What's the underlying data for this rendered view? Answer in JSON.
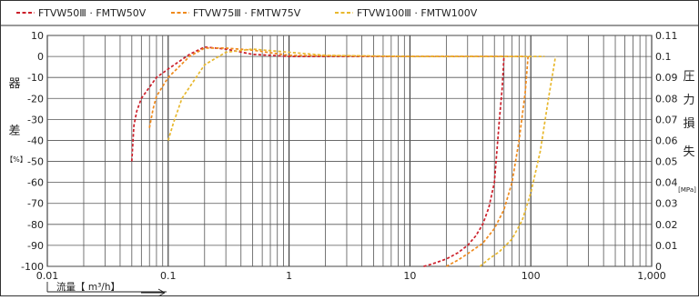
{
  "chart_data": {
    "type": "line",
    "x_scale": "log",
    "xlim": [
      0.01,
      1000
    ],
    "x_ticks": [
      "0.01",
      "0.1",
      "1",
      "10",
      "100",
      "1,000"
    ],
    "x_tick_values": [
      0.01,
      0.1,
      1,
      10,
      100,
      1000
    ],
    "xlabel": "流量【 m³/h】",
    "ylim_left": [
      -100,
      10
    ],
    "y_ticks_left": [
      "10",
      "0",
      "-10",
      "-20",
      "-30",
      "-40",
      "-50",
      "-60",
      "-70",
      "-80",
      "-90",
      "-100"
    ],
    "ylabel_left": [
      "器",
      "差",
      "【%】"
    ],
    "ylim_right": [
      0,
      0.11
    ],
    "y_ticks_right": [
      "0.11",
      "0.1",
      "0.09",
      "0.08",
      "0.07",
      "0.06",
      "0.05",
      "0.04",
      "0.03",
      "0.02",
      "0.01",
      "0"
    ],
    "ylabel_right": [
      "圧",
      "力",
      "損",
      "失",
      "[MPa]"
    ],
    "grid": true,
    "legend_position": "top-left",
    "series": [
      {
        "name": "FTVW50Ⅲ · FMTW50V",
        "color": "#cc1f2a",
        "error_curve": [
          [
            0.05,
            -50
          ],
          [
            0.052,
            -33
          ],
          [
            0.055,
            -26
          ],
          [
            0.06,
            -20
          ],
          [
            0.08,
            -10
          ],
          [
            0.1,
            -6
          ],
          [
            0.15,
            1
          ],
          [
            0.2,
            4.5
          ],
          [
            0.3,
            3.5
          ],
          [
            0.5,
            1
          ],
          [
            1,
            0
          ],
          [
            10,
            0
          ],
          [
            60,
            0
          ]
        ],
        "pressure_loss_curve": [
          [
            13,
            0
          ],
          [
            15,
            0.001
          ],
          [
            20,
            0.0035
          ],
          [
            25,
            0.0065
          ],
          [
            30,
            0.01
          ],
          [
            35,
            0.0145
          ],
          [
            40,
            0.02
          ],
          [
            45,
            0.028
          ],
          [
            50,
            0.04
          ],
          [
            55,
            0.07
          ],
          [
            58,
            0.085
          ],
          [
            60,
            0.1
          ]
        ]
      },
      {
        "name": "FTVW75Ⅲ · FMTW75V",
        "color": "#ef8a1c",
        "error_curve": [
          [
            0.07,
            -34
          ],
          [
            0.075,
            -25
          ],
          [
            0.08,
            -19
          ],
          [
            0.1,
            -10
          ],
          [
            0.15,
            0
          ],
          [
            0.2,
            4
          ],
          [
            0.3,
            4
          ],
          [
            0.5,
            3
          ],
          [
            1,
            0.5
          ],
          [
            10,
            0
          ],
          [
            90,
            0
          ]
        ],
        "pressure_loss_curve": [
          [
            20,
            0
          ],
          [
            25,
            0.003
          ],
          [
            30,
            0.006
          ],
          [
            40,
            0.011
          ],
          [
            50,
            0.018
          ],
          [
            60,
            0.027
          ],
          [
            70,
            0.04
          ],
          [
            80,
            0.06
          ],
          [
            90,
            0.083
          ],
          [
            95,
            0.1
          ]
        ]
      },
      {
        "name": "FTVW100Ⅲ · FMTW100V",
        "color": "#e8b82e",
        "error_curve": [
          [
            0.1,
            -40
          ],
          [
            0.11,
            -32
          ],
          [
            0.13,
            -20
          ],
          [
            0.2,
            -4
          ],
          [
            0.3,
            2
          ],
          [
            0.5,
            3.5
          ],
          [
            1,
            2
          ],
          [
            2,
            0.5
          ],
          [
            10,
            0
          ],
          [
            130,
            0
          ]
        ],
        "pressure_loss_curve": [
          [
            38,
            0
          ],
          [
            45,
            0.0035
          ],
          [
            55,
            0.007
          ],
          [
            70,
            0.013
          ],
          [
            85,
            0.022
          ],
          [
            100,
            0.035
          ],
          [
            120,
            0.055
          ],
          [
            140,
            0.08
          ],
          [
            155,
            0.095
          ],
          [
            160,
            0.1
          ]
        ]
      }
    ]
  }
}
